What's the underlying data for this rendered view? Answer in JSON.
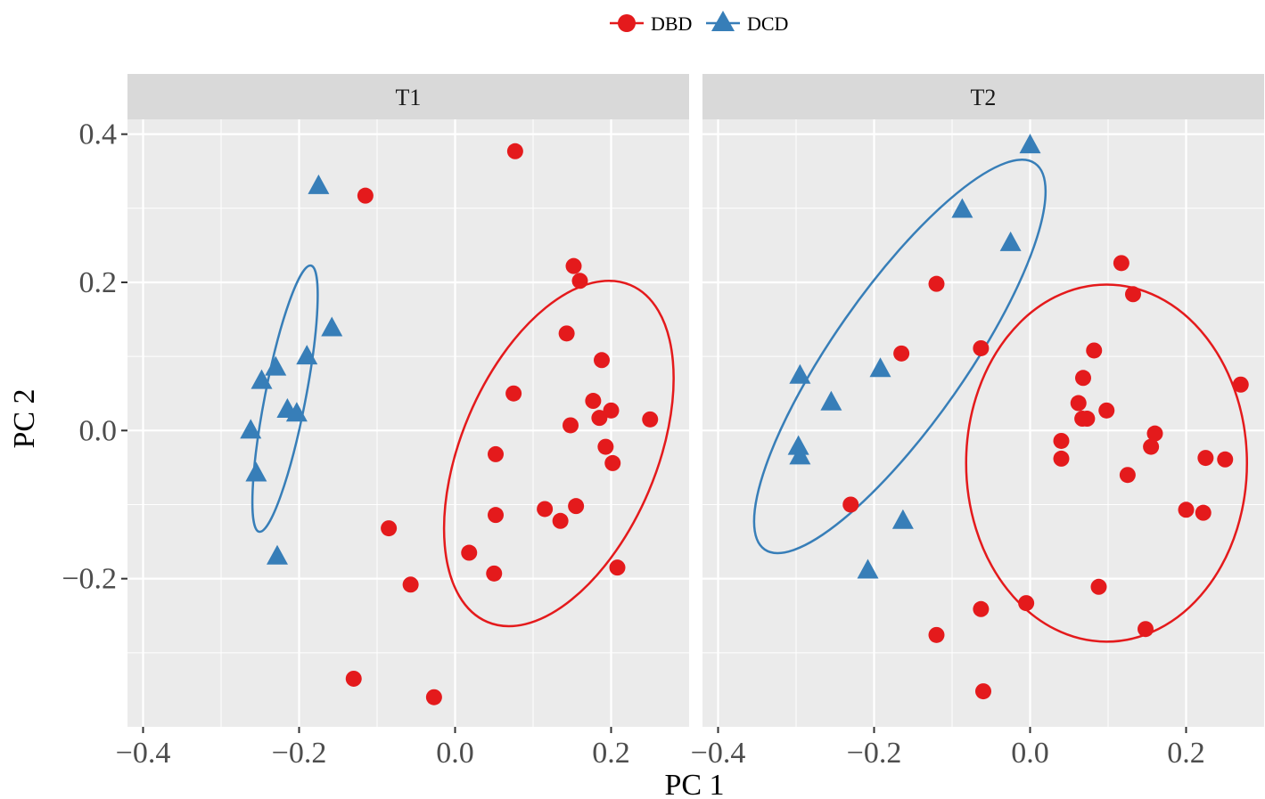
{
  "chart_data": {
    "type": "scatter",
    "xlabel": "PC 1",
    "ylabel": "PC 2",
    "xlim": [
      -0.42,
      0.3
    ],
    "ylim": [
      -0.4,
      0.42
    ],
    "x_ticks": [
      -0.4,
      -0.2,
      0.0,
      0.2
    ],
    "x_tick_labels": [
      "−0.4",
      "−0.2",
      "0.0",
      "0.2"
    ],
    "y_ticks": [
      0.4,
      0.2,
      0.0,
      -0.2
    ],
    "y_tick_labels": [
      "0.4",
      "0.2",
      "0.0",
      "−0.2"
    ],
    "grid": true,
    "legend": {
      "position": "top",
      "entries": [
        {
          "label": "DBD",
          "color": "#e41a1c",
          "shape": "circle"
        },
        {
          "label": "DCD",
          "color": "#377eb8",
          "shape": "triangle"
        }
      ]
    },
    "panels": [
      {
        "strip": "T1",
        "series": [
          {
            "name": "DBD",
            "color": "#e41a1c",
            "shape": "circle",
            "points": [
              [
                -0.115,
                0.317
              ],
              [
                0.077,
                0.377
              ],
              [
                0.152,
                0.222
              ],
              [
                0.16,
                0.202
              ],
              [
                0.143,
                0.131
              ],
              [
                0.188,
                0.095
              ],
              [
                0.075,
                0.05
              ],
              [
                0.177,
                0.04
              ],
              [
                0.2,
                0.027
              ],
              [
                0.185,
                0.017
              ],
              [
                0.148,
                0.007
              ],
              [
                0.25,
                0.015
              ],
              [
                0.193,
                -0.022
              ],
              [
                0.202,
                -0.044
              ],
              [
                0.052,
                -0.032
              ],
              [
                0.115,
                -0.106
              ],
              [
                0.135,
                -0.122
              ],
              [
                0.155,
                -0.102
              ],
              [
                0.052,
                -0.114
              ],
              [
                0.018,
                -0.165
              ],
              [
                0.05,
                -0.193
              ],
              [
                0.208,
                -0.185
              ],
              [
                -0.085,
                -0.132
              ],
              [
                -0.057,
                -0.208
              ],
              [
                -0.13,
                -0.335
              ],
              [
                -0.027,
                -0.36
              ]
            ]
          },
          {
            "name": "DCD",
            "color": "#377eb8",
            "shape": "triangle",
            "points": [
              [
                -0.175,
                0.33
              ],
              [
                -0.158,
                0.138
              ],
              [
                -0.19,
                0.1
              ],
              [
                -0.23,
                0.085
              ],
              [
                -0.248,
                0.067
              ],
              [
                -0.215,
                0.028
              ],
              [
                -0.203,
                0.023
              ],
              [
                -0.262,
                0.0
              ],
              [
                -0.255,
                -0.058
              ],
              [
                -0.228,
                -0.17
              ]
            ]
          }
        ],
        "ellipses": [
          {
            "series": "DCD",
            "color": "#377eb8",
            "center": [
              -0.218,
              0.043
            ],
            "rx": 0.026,
            "ry": 0.183,
            "angle_deg": 11
          },
          {
            "series": "DBD",
            "color": "#e41a1c",
            "center": [
              0.133,
              -0.031
            ],
            "rx": 0.125,
            "ry": 0.247,
            "angle_deg": 23
          }
        ]
      },
      {
        "strip": "T2",
        "series": [
          {
            "name": "DBD",
            "color": "#e41a1c",
            "shape": "circle",
            "points": [
              [
                0.117,
                0.226
              ],
              [
                0.132,
                0.184
              ],
              [
                -0.12,
                0.198
              ],
              [
                -0.165,
                0.104
              ],
              [
                -0.063,
                0.111
              ],
              [
                0.082,
                0.108
              ],
              [
                0.068,
                0.071
              ],
              [
                0.27,
                0.062
              ],
              [
                0.062,
                0.037
              ],
              [
                0.098,
                0.027
              ],
              [
                0.067,
                0.016
              ],
              [
                0.073,
                0.016
              ],
              [
                0.04,
                -0.014
              ],
              [
                0.16,
                -0.004
              ],
              [
                0.155,
                -0.022
              ],
              [
                0.04,
                -0.038
              ],
              [
                0.225,
                -0.037
              ],
              [
                0.25,
                -0.039
              ],
              [
                0.125,
                -0.06
              ],
              [
                -0.23,
                -0.1
              ],
              [
                0.2,
                -0.107
              ],
              [
                0.222,
                -0.111
              ],
              [
                0.088,
                -0.211
              ],
              [
                -0.005,
                -0.233
              ],
              [
                -0.063,
                -0.241
              ],
              [
                -0.12,
                -0.276
              ],
              [
                0.148,
                -0.268
              ],
              [
                -0.06,
                -0.352
              ]
            ]
          },
          {
            "name": "DCD",
            "color": "#377eb8",
            "shape": "triangle",
            "points": [
              [
                0.0,
                0.385
              ],
              [
                -0.087,
                0.298
              ],
              [
                -0.025,
                0.253
              ],
              [
                -0.192,
                0.083
              ],
              [
                -0.295,
                0.074
              ],
              [
                -0.255,
                0.038
              ],
              [
                -0.297,
                -0.022
              ],
              [
                -0.295,
                -0.035
              ],
              [
                -0.163,
                -0.122
              ],
              [
                -0.208,
                -0.189
              ]
            ]
          }
        ],
        "ellipses": [
          {
            "series": "DCD",
            "color": "#377eb8",
            "center": [
              -0.167,
              0.1
            ],
            "rx": 0.085,
            "ry": 0.318,
            "angle_deg": 35
          },
          {
            "series": "DBD",
            "color": "#e41a1c",
            "center": [
              0.098,
              -0.044
            ],
            "rx": 0.18,
            "ry": 0.241,
            "angle_deg": 0
          }
        ]
      }
    ]
  }
}
